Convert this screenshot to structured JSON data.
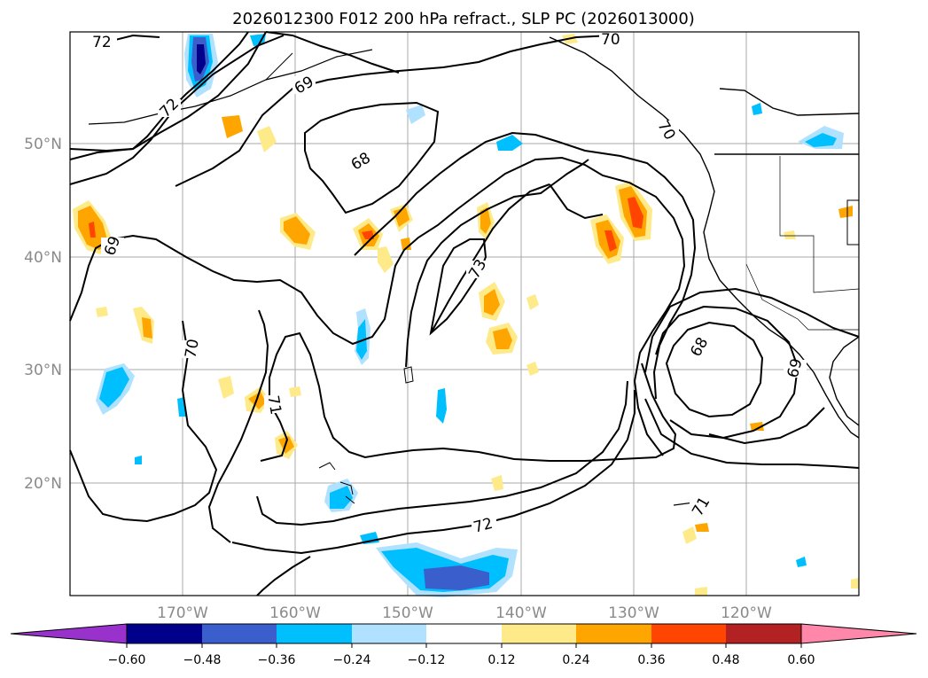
{
  "title": "2026012300 F012 200 hPa refract., SLP PC (2026013000)",
  "map": {
    "latitude_ticks": [
      "20°N",
      "30°N",
      "40°N",
      "50°N"
    ],
    "longitude_ticks": [
      "170°W",
      "160°W",
      "150°W",
      "140°W",
      "130°W",
      "120°W"
    ],
    "gridlines": true,
    "contour_labels": [
      "72",
      "72",
      "70",
      "69",
      "68",
      "69",
      "73",
      "70",
      "71",
      "72",
      "71",
      "68",
      "69",
      "70"
    ]
  },
  "colorbar": {
    "tick_labels": [
      "−0.60",
      "−0.48",
      "−0.36",
      "−0.24",
      "−0.12",
      "0.12",
      "0.24",
      "0.36",
      "0.48",
      "0.60"
    ],
    "colors": [
      "#9932cc",
      "#00008b",
      "#3a5fcd",
      "#00bfff",
      "#b0e2ff",
      "#ffffff",
      "#ffea8a",
      "#ffa500",
      "#ff4500",
      "#b22222",
      "#ff88aa"
    ]
  },
  "colors": {
    "contour_line": "#000000",
    "grid": "#a9a9a9",
    "coast": "#000000",
    "fill_light_blue": "#b0e2ff",
    "fill_cyan": "#00bfff",
    "fill_royal": "#3a5fcd",
    "fill_navy": "#00008b",
    "fill_yellow": "#ffea8a",
    "fill_orange": "#ffa500",
    "fill_red": "#ff4500"
  }
}
